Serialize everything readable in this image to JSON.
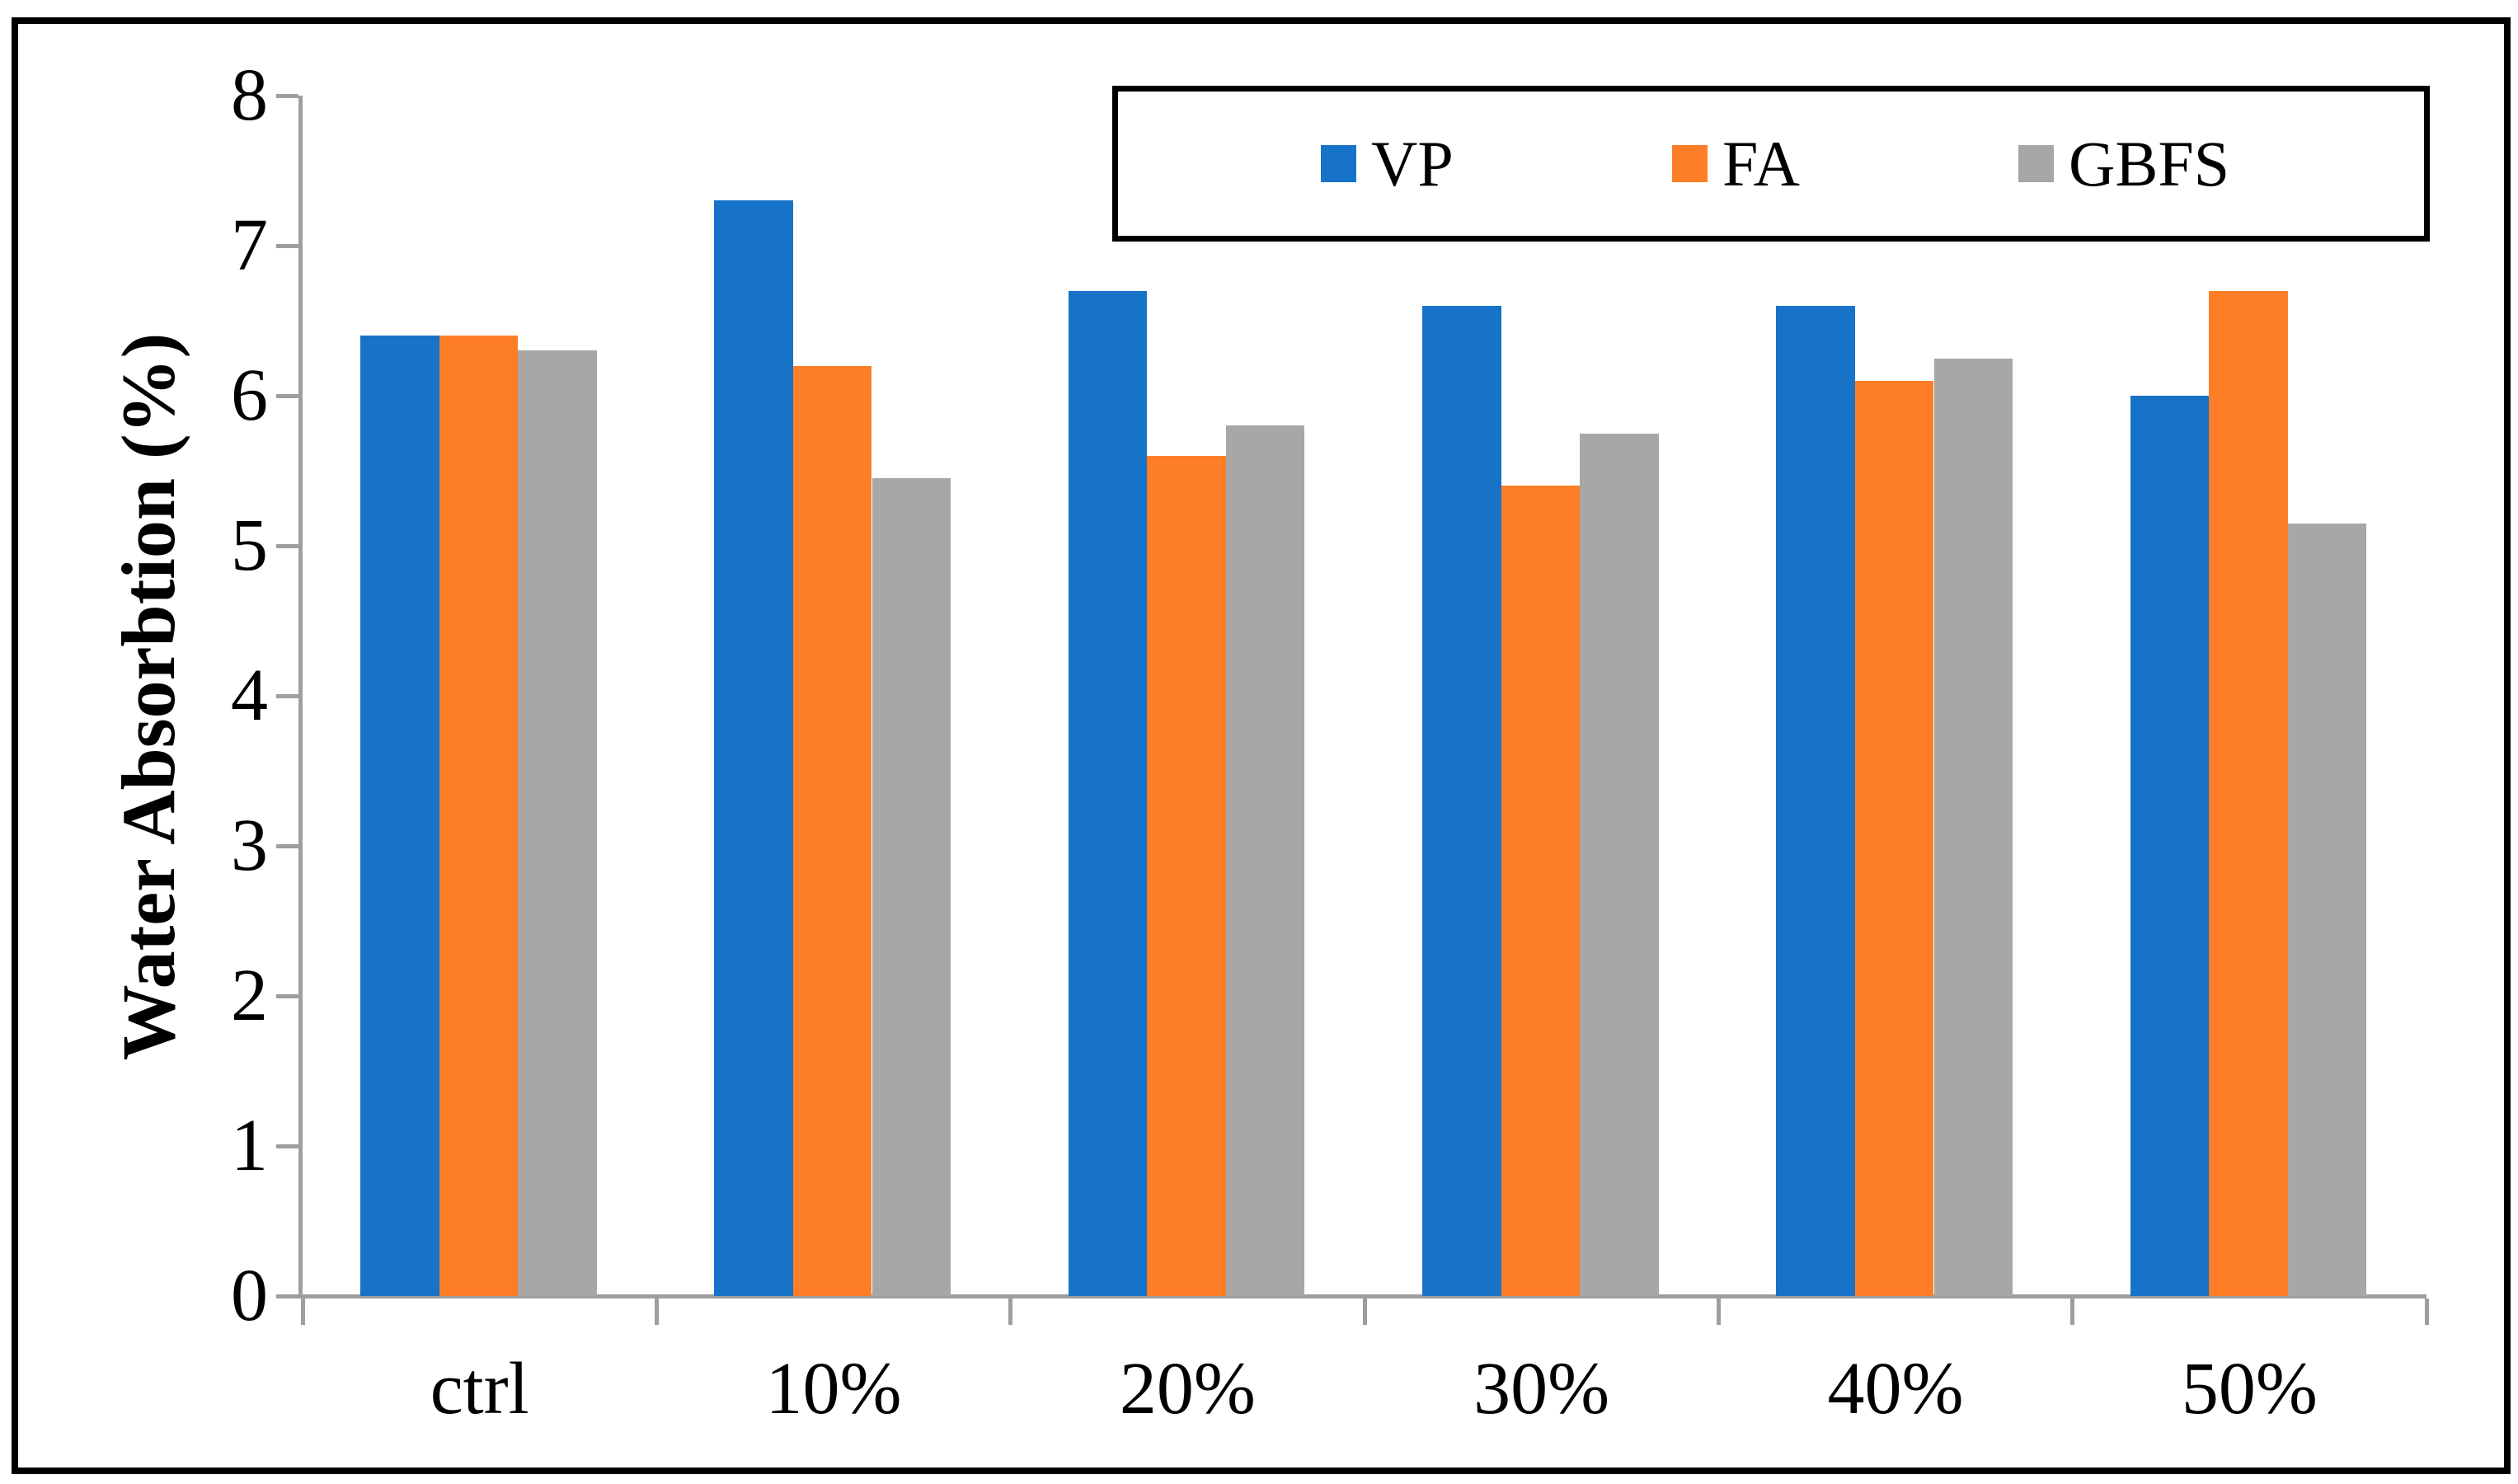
{
  "chart_data": {
    "type": "bar",
    "title": "",
    "ylabel": "Water Absorbtion (%)",
    "xlabel": "",
    "categories": [
      "ctrl",
      "10%",
      "20%",
      "30%",
      "40%",
      "50%"
    ],
    "series": [
      {
        "name": "VP",
        "color": "#1773C8",
        "values": [
          6.4,
          7.3,
          6.7,
          6.6,
          6.6,
          6.0
        ]
      },
      {
        "name": "FA",
        "color": "#FD7E26",
        "values": [
          6.4,
          6.2,
          5.6,
          5.4,
          6.1,
          6.7
        ]
      },
      {
        "name": "GBFS",
        "color": "#A8A7A5",
        "values": [
          6.3,
          5.45,
          5.8,
          5.75,
          6.25,
          5.15
        ]
      }
    ],
    "ylim": [
      0,
      8
    ],
    "ytick_step": 1,
    "ytick_labels": [
      "0",
      "1",
      "2",
      "3",
      "4",
      "5",
      "6",
      "7",
      "8"
    ],
    "grid": false,
    "legend_position": "top-right-inside-box",
    "axis_color": "#9E9E9E",
    "frame_color": "#000000",
    "background_color": "#FFFFFF"
  }
}
